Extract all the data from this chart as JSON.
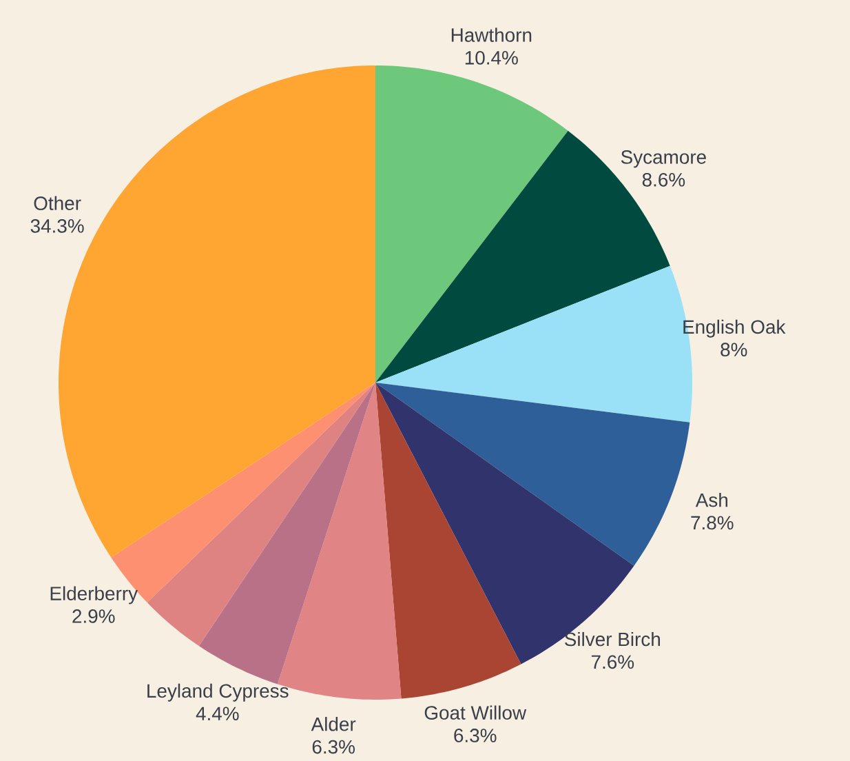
{
  "chart_data": {
    "type": "pie",
    "categories": [
      "Hawthorn",
      "Sycamore",
      "English Oak",
      "Ash",
      "Silver Birch",
      "Goat Willow",
      "Alder",
      "Leyland Cypress",
      null,
      "Elderberry",
      "Other"
    ],
    "values": [
      10.4,
      8.6,
      8,
      7.8,
      7.6,
      6.3,
      6.3,
      4.4,
      3.4,
      2.9,
      34.3
    ],
    "value_labels": [
      "10.4%",
      "8.6%",
      "8%",
      "7.8%",
      "7.6%",
      "6.3%",
      "6.3%",
      "4.4%",
      null,
      "2.9%",
      "34.3%"
    ],
    "colors": [
      "#6dc87b",
      "#004a3f",
      "#9ae1f8",
      "#2e5f98",
      "#31346c",
      "#ab4533",
      "#e08486",
      "#b87186",
      "#de8282",
      "#fe9072",
      "#fea532"
    ]
  }
}
